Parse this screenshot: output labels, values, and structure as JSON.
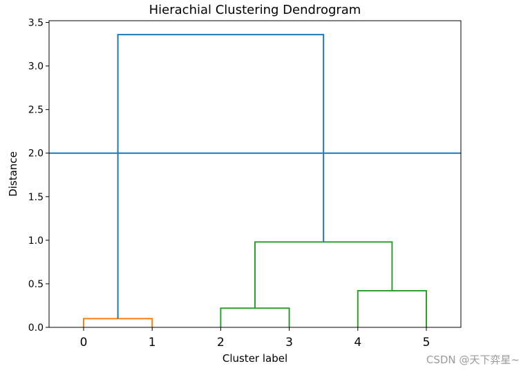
{
  "chart_data": {
    "type": "dendrogram",
    "title": "Hierachial Clustering Dendrogram",
    "xlabel": "Cluster label",
    "ylabel": "Distance",
    "xtick_labels": [
      "0",
      "1",
      "2",
      "3",
      "4",
      "5"
    ],
    "yticks": [
      0.0,
      0.5,
      1.0,
      1.5,
      2.0,
      2.5,
      3.0,
      3.5
    ],
    "ytick_labels": [
      "0.0",
      "0.5",
      "1.0",
      "1.5",
      "2.0",
      "2.5",
      "3.0",
      "3.5"
    ],
    "ylim": [
      0,
      3.52
    ],
    "grid": false,
    "colors": {
      "orange": "#ff7f0e",
      "green": "#2ca02c",
      "blue": "#1f77b4"
    },
    "links": [
      {
        "left": 0,
        "right": 1,
        "height": 0.1,
        "left_height": 0.0,
        "right_height": 0.0,
        "color": "#ff7f0e"
      },
      {
        "left": 2,
        "right": 3,
        "height": 0.22,
        "left_height": 0.0,
        "right_height": 0.0,
        "color": "#2ca02c"
      },
      {
        "left": 4,
        "right": 5,
        "height": 0.42,
        "left_height": 0.0,
        "right_height": 0.0,
        "color": "#2ca02c"
      },
      {
        "left": 2.5,
        "right": 4.5,
        "height": 0.98,
        "left_height": 0.22,
        "right_height": 0.42,
        "color": "#2ca02c"
      },
      {
        "left": 0.5,
        "right": 3.5,
        "height": 3.36,
        "left_height": 0.1,
        "right_height": 0.98,
        "color": "#1f77b4"
      }
    ],
    "threshold_line": {
      "y": 2.0,
      "color": "#1f77b4"
    }
  },
  "watermark": "CSDN @天下弈星~"
}
